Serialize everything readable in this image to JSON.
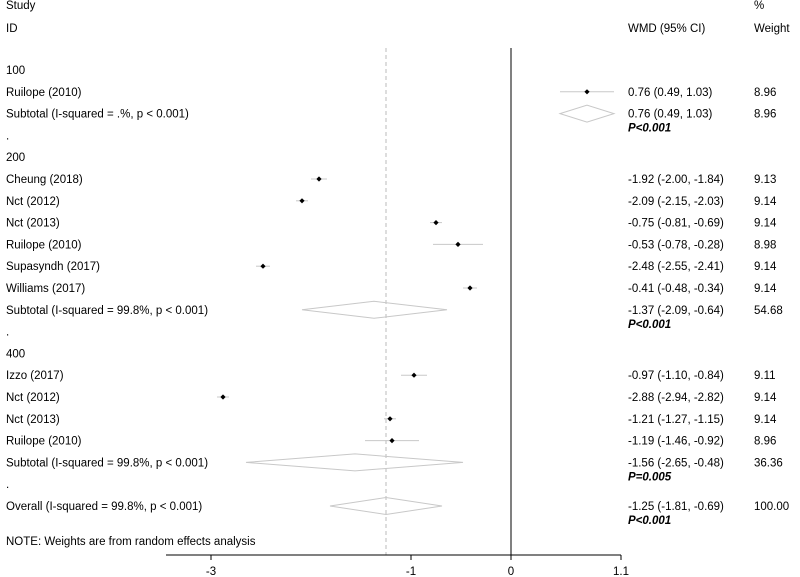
{
  "header": {
    "study_label": "Study",
    "id_label": "ID",
    "effect_label": "WMD (95% CI)",
    "pct_label": "%",
    "weight_label": "Weight"
  },
  "note": "NOTE: Weights are from random effects analysis",
  "chart_data": {
    "type": "forest",
    "effect_measure": "WMD (95% CI)",
    "x_ticks": [
      -3,
      -1,
      0,
      1.1
    ],
    "x_tick_labels": [
      "-3",
      "-1",
      "0",
      "1.1"
    ],
    "null_line": 0,
    "overall_line": -1.25,
    "rows": [
      {
        "kind": "group",
        "label": "100"
      },
      {
        "kind": "study",
        "label": "Ruilope (2010)",
        "est": 0.76,
        "lo": 0.49,
        "hi": 1.03,
        "ci_text": "0.76 (0.49, 1.03)",
        "weight": "8.96"
      },
      {
        "kind": "subtotal",
        "label": "Subtotal  (I-squared = .%, p < 0.001)",
        "est": 0.76,
        "lo": 0.49,
        "hi": 1.03,
        "ci_text": "0.76 (0.49, 1.03)",
        "weight": "8.96",
        "p_text": "P<0.001"
      },
      {
        "kind": "dot",
        "label": "."
      },
      {
        "kind": "group",
        "label": "200"
      },
      {
        "kind": "study",
        "label": "Cheung (2018)",
        "est": -1.92,
        "lo": -2.0,
        "hi": -1.84,
        "ci_text": "-1.92 (-2.00, -1.84)",
        "weight": "9.13"
      },
      {
        "kind": "study",
        "label": "Nct  (2012)",
        "est": -2.09,
        "lo": -2.15,
        "hi": -2.03,
        "ci_text": "-2.09 (-2.15, -2.03)",
        "weight": "9.14"
      },
      {
        "kind": "study",
        "label": "Nct  (2013)",
        "est": -0.75,
        "lo": -0.81,
        "hi": -0.69,
        "ci_text": "-0.75 (-0.81, -0.69)",
        "weight": "9.14"
      },
      {
        "kind": "study",
        "label": "Ruilope  (2010)",
        "est": -0.53,
        "lo": -0.78,
        "hi": -0.28,
        "ci_text": "-0.53 (-0.78, -0.28)",
        "weight": "8.98"
      },
      {
        "kind": "study",
        "label": "Supasyndh  (2017)",
        "est": -2.48,
        "lo": -2.55,
        "hi": -2.41,
        "ci_text": "-2.48 (-2.55, -2.41)",
        "weight": "9.14"
      },
      {
        "kind": "study",
        "label": "Williams  (2017)",
        "est": -0.41,
        "lo": -0.48,
        "hi": -0.34,
        "ci_text": "-0.41 (-0.48, -0.34)",
        "weight": "9.14"
      },
      {
        "kind": "subtotal",
        "label": "Subtotal  (I-squared = 99.8%, p < 0.001)",
        "est": -1.37,
        "lo": -2.09,
        "hi": -0.64,
        "ci_text": "-1.37 (-2.09, -0.64)",
        "weight": "54.68",
        "p_text": "P<0.001"
      },
      {
        "kind": "dot",
        "label": "."
      },
      {
        "kind": "group",
        "label": "400"
      },
      {
        "kind": "study",
        "label": "Izzo  (2017)",
        "est": -0.97,
        "lo": -1.1,
        "hi": -0.84,
        "ci_text": "-0.97 (-1.10, -0.84)",
        "weight": "9.11"
      },
      {
        "kind": "study",
        "label": "Nct  (2012)",
        "est": -2.88,
        "lo": -2.94,
        "hi": -2.82,
        "ci_text": "-2.88 (-2.94, -2.82)",
        "weight": "9.14"
      },
      {
        "kind": "study",
        "label": "Nct  (2013)",
        "est": -1.21,
        "lo": -1.27,
        "hi": -1.15,
        "ci_text": "-1.21 (-1.27, -1.15)",
        "weight": "9.14"
      },
      {
        "kind": "study",
        "label": "Ruilope  (2010)",
        "est": -1.19,
        "lo": -1.46,
        "hi": -0.92,
        "ci_text": "-1.19 (-1.46, -0.92)",
        "weight": "8.96"
      },
      {
        "kind": "subtotal",
        "label": "Subtotal  (I-squared = 99.8%, p < 0.001)",
        "est": -1.56,
        "lo": -2.65,
        "hi": -0.48,
        "ci_text": "-1.56 (-2.65, -0.48)",
        "weight": "36.36",
        "p_text": "P=0.005"
      },
      {
        "kind": "dot",
        "label": "."
      },
      {
        "kind": "overall",
        "label": "Overall  (I-squared = 99.8%, p < 0.001)",
        "est": -1.25,
        "lo": -1.81,
        "hi": -0.69,
        "ci_text": "-1.25 (-1.81, -0.69)",
        "weight": "100.00",
        "p_text": "P<0.001"
      }
    ]
  }
}
